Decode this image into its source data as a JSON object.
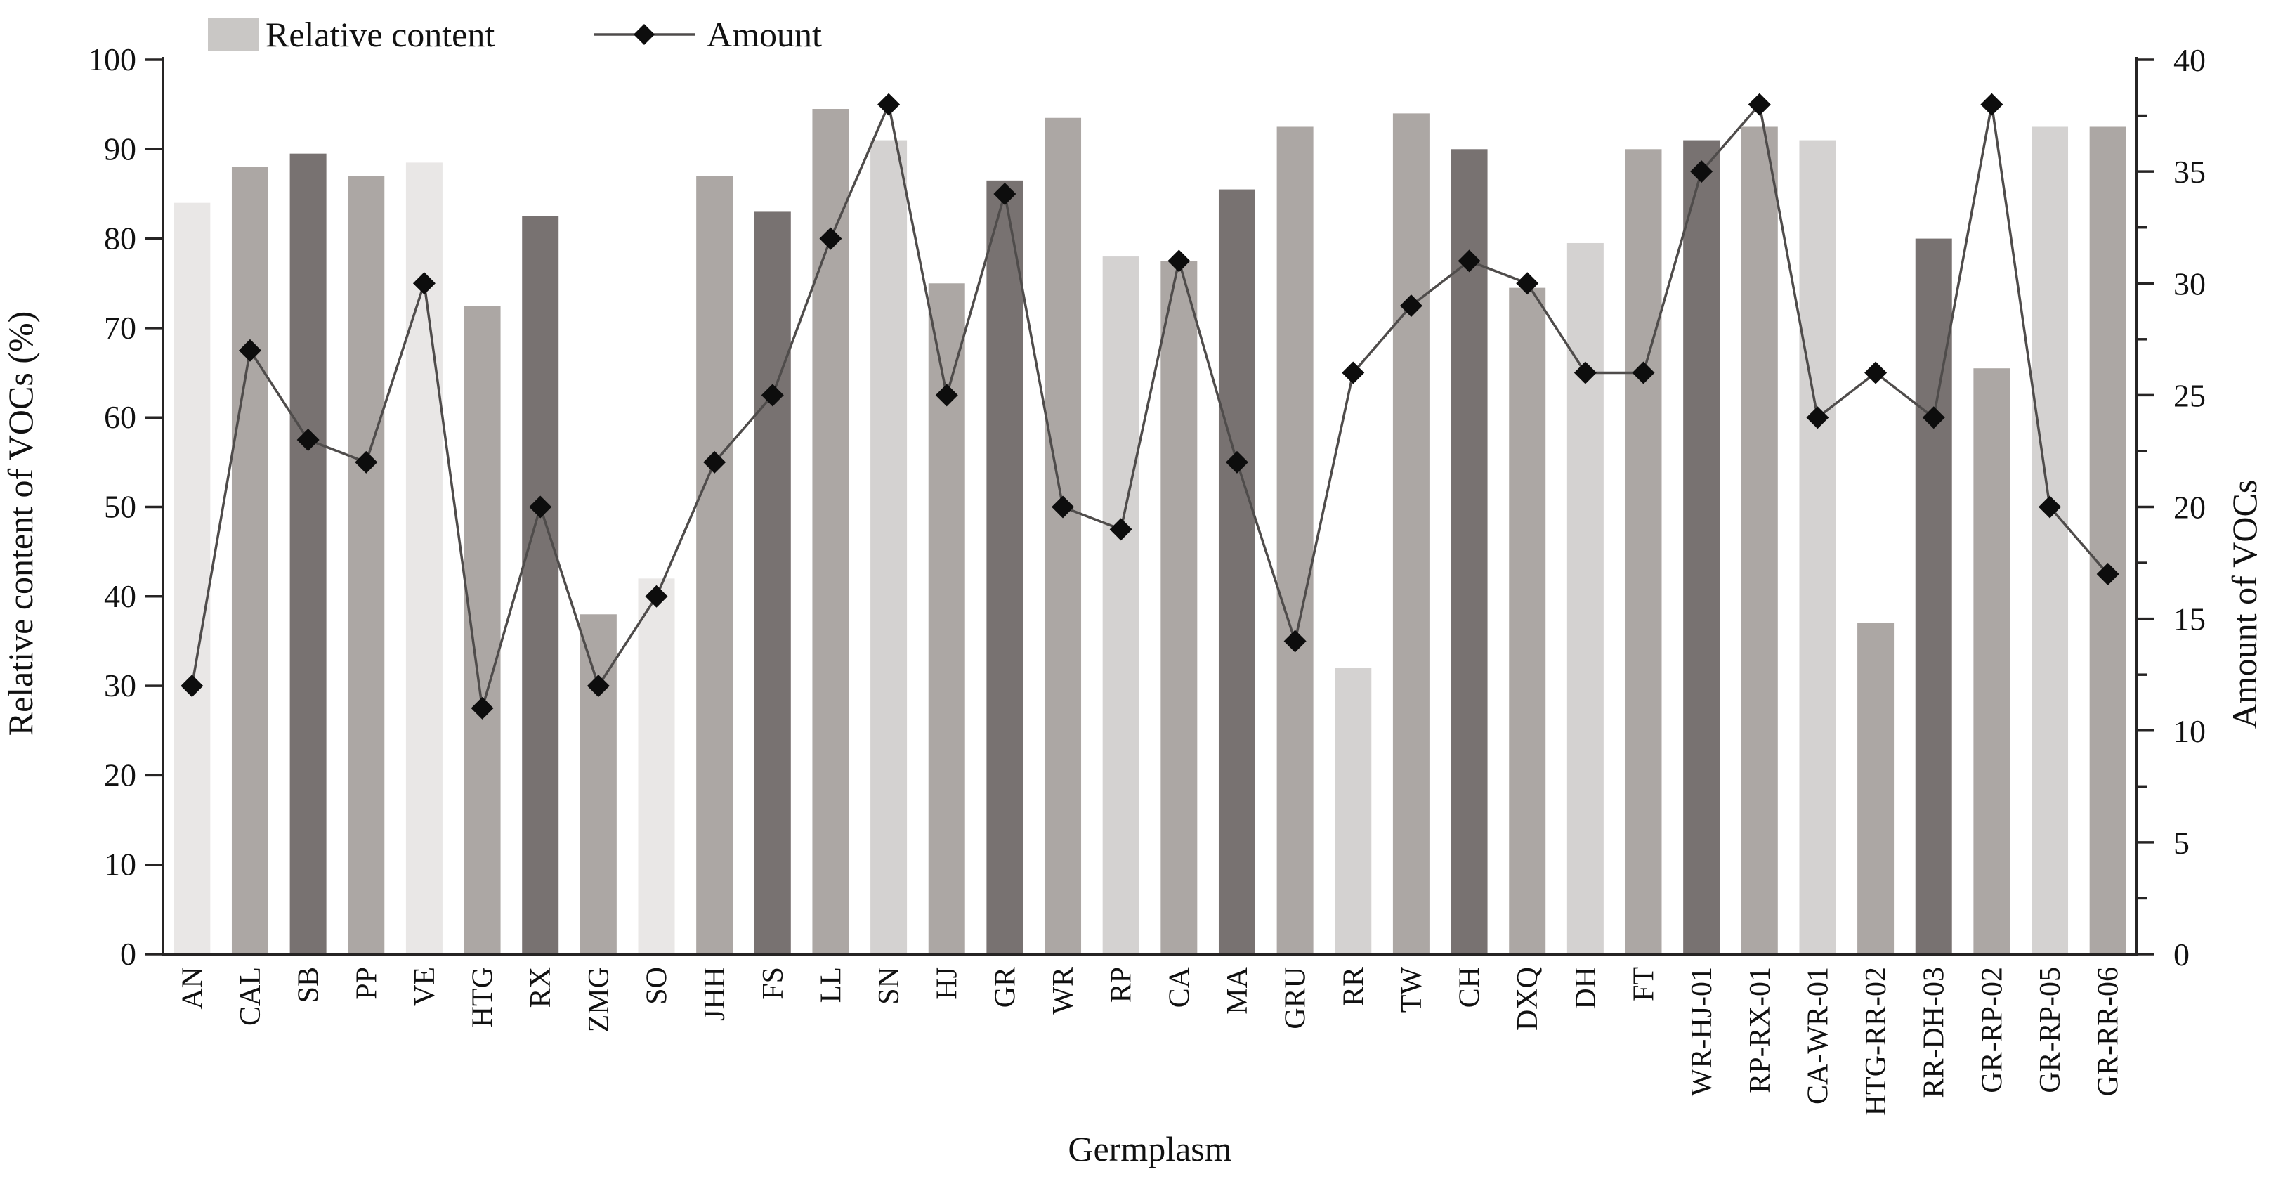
{
  "figure": {
    "background": "#ffffff"
  },
  "chart_data": {
    "type": "bar",
    "subtype": "dual-axis-bar-line-combo",
    "title": "",
    "xlabel": "Germplasm",
    "grid": false,
    "legend_position": "top",
    "categories": [
      "AN",
      "CAL",
      "SB",
      "PP",
      "VE",
      "HTG",
      "RX",
      "ZMG",
      "SO",
      "JHH",
      "FS",
      "LL",
      "SN",
      "HJ",
      "GR",
      "WR",
      "RP",
      "CA",
      "MA",
      "GRU",
      "RR",
      "TW",
      "CH",
      "DXQ",
      "DH",
      "FT",
      "WR-HJ-01",
      "RP-RX-01",
      "CA-WR-01",
      "HTG-RR-02",
      "RR-DH-03",
      "GR-RP-02",
      "GR-RP-05",
      "GR-RR-06"
    ],
    "series": [
      {
        "name": "Relative content",
        "type": "bar",
        "axis": "left",
        "values": [
          84,
          88,
          89.5,
          87,
          88.5,
          72.5,
          82.5,
          38,
          42,
          87,
          83,
          94.5,
          91,
          75,
          86.5,
          93.5,
          78,
          77.5,
          85.5,
          92.5,
          32,
          94,
          90,
          74.5,
          79.5,
          90,
          91,
          92.5,
          91,
          37,
          80,
          65.5,
          92.5,
          92.5
        ]
      },
      {
        "name": "Amount",
        "type": "line",
        "axis": "right",
        "marker": "diamond",
        "values": [
          12,
          27,
          23,
          22,
          30,
          11,
          20,
          12,
          16,
          22,
          25,
          32,
          38,
          25,
          34,
          20,
          19,
          31,
          22,
          14,
          26,
          29,
          31,
          30,
          26,
          26,
          35,
          38,
          24,
          26,
          24,
          38,
          20,
          17
        ]
      }
    ],
    "bar_shade_by_category": [
      "very_light",
      "medium",
      "dark",
      "medium",
      "very_light",
      "medium",
      "dark",
      "medium",
      "very_light",
      "medium",
      "dark",
      "medium",
      "light",
      "medium",
      "dark",
      "medium",
      "light",
      "medium",
      "dark",
      "medium",
      "light",
      "medium",
      "dark",
      "medium",
      "light",
      "medium",
      "dark",
      "medium",
      "light",
      "medium",
      "dark",
      "medium",
      "light",
      "medium"
    ],
    "left_axis": {
      "title": "Relative content of VOCs (%)",
      "min": 0,
      "max": 100,
      "tick_step": 10,
      "tick_labels": [
        "0",
        "10",
        "20",
        "30",
        "40",
        "50",
        "60",
        "70",
        "80",
        "90",
        "100"
      ]
    },
    "right_axis": {
      "title": "Amount of VOCs",
      "min": 0,
      "max": 40,
      "tick_step": 5,
      "minor_tick_step": 2.5,
      "tick_labels": [
        "0",
        "5",
        "10",
        "15",
        "20",
        "25",
        "30",
        "35",
        "40"
      ]
    },
    "legend": {
      "items": [
        {
          "label": "Relative content",
          "marker": "bar-swatch"
        },
        {
          "label": "Amount",
          "marker": "line-diamond"
        }
      ]
    },
    "colors": {
      "bar_very_light": "#e9e7e6",
      "bar_light": "#d4d2d1",
      "bar_medium": "#aca7a4",
      "bar_dark": "#787271",
      "line": "#4f4c4b",
      "marker": "#0d0d0d",
      "legend_swatch": "#c9c7c5",
      "axis": "#262424",
      "text": "#111111"
    }
  }
}
